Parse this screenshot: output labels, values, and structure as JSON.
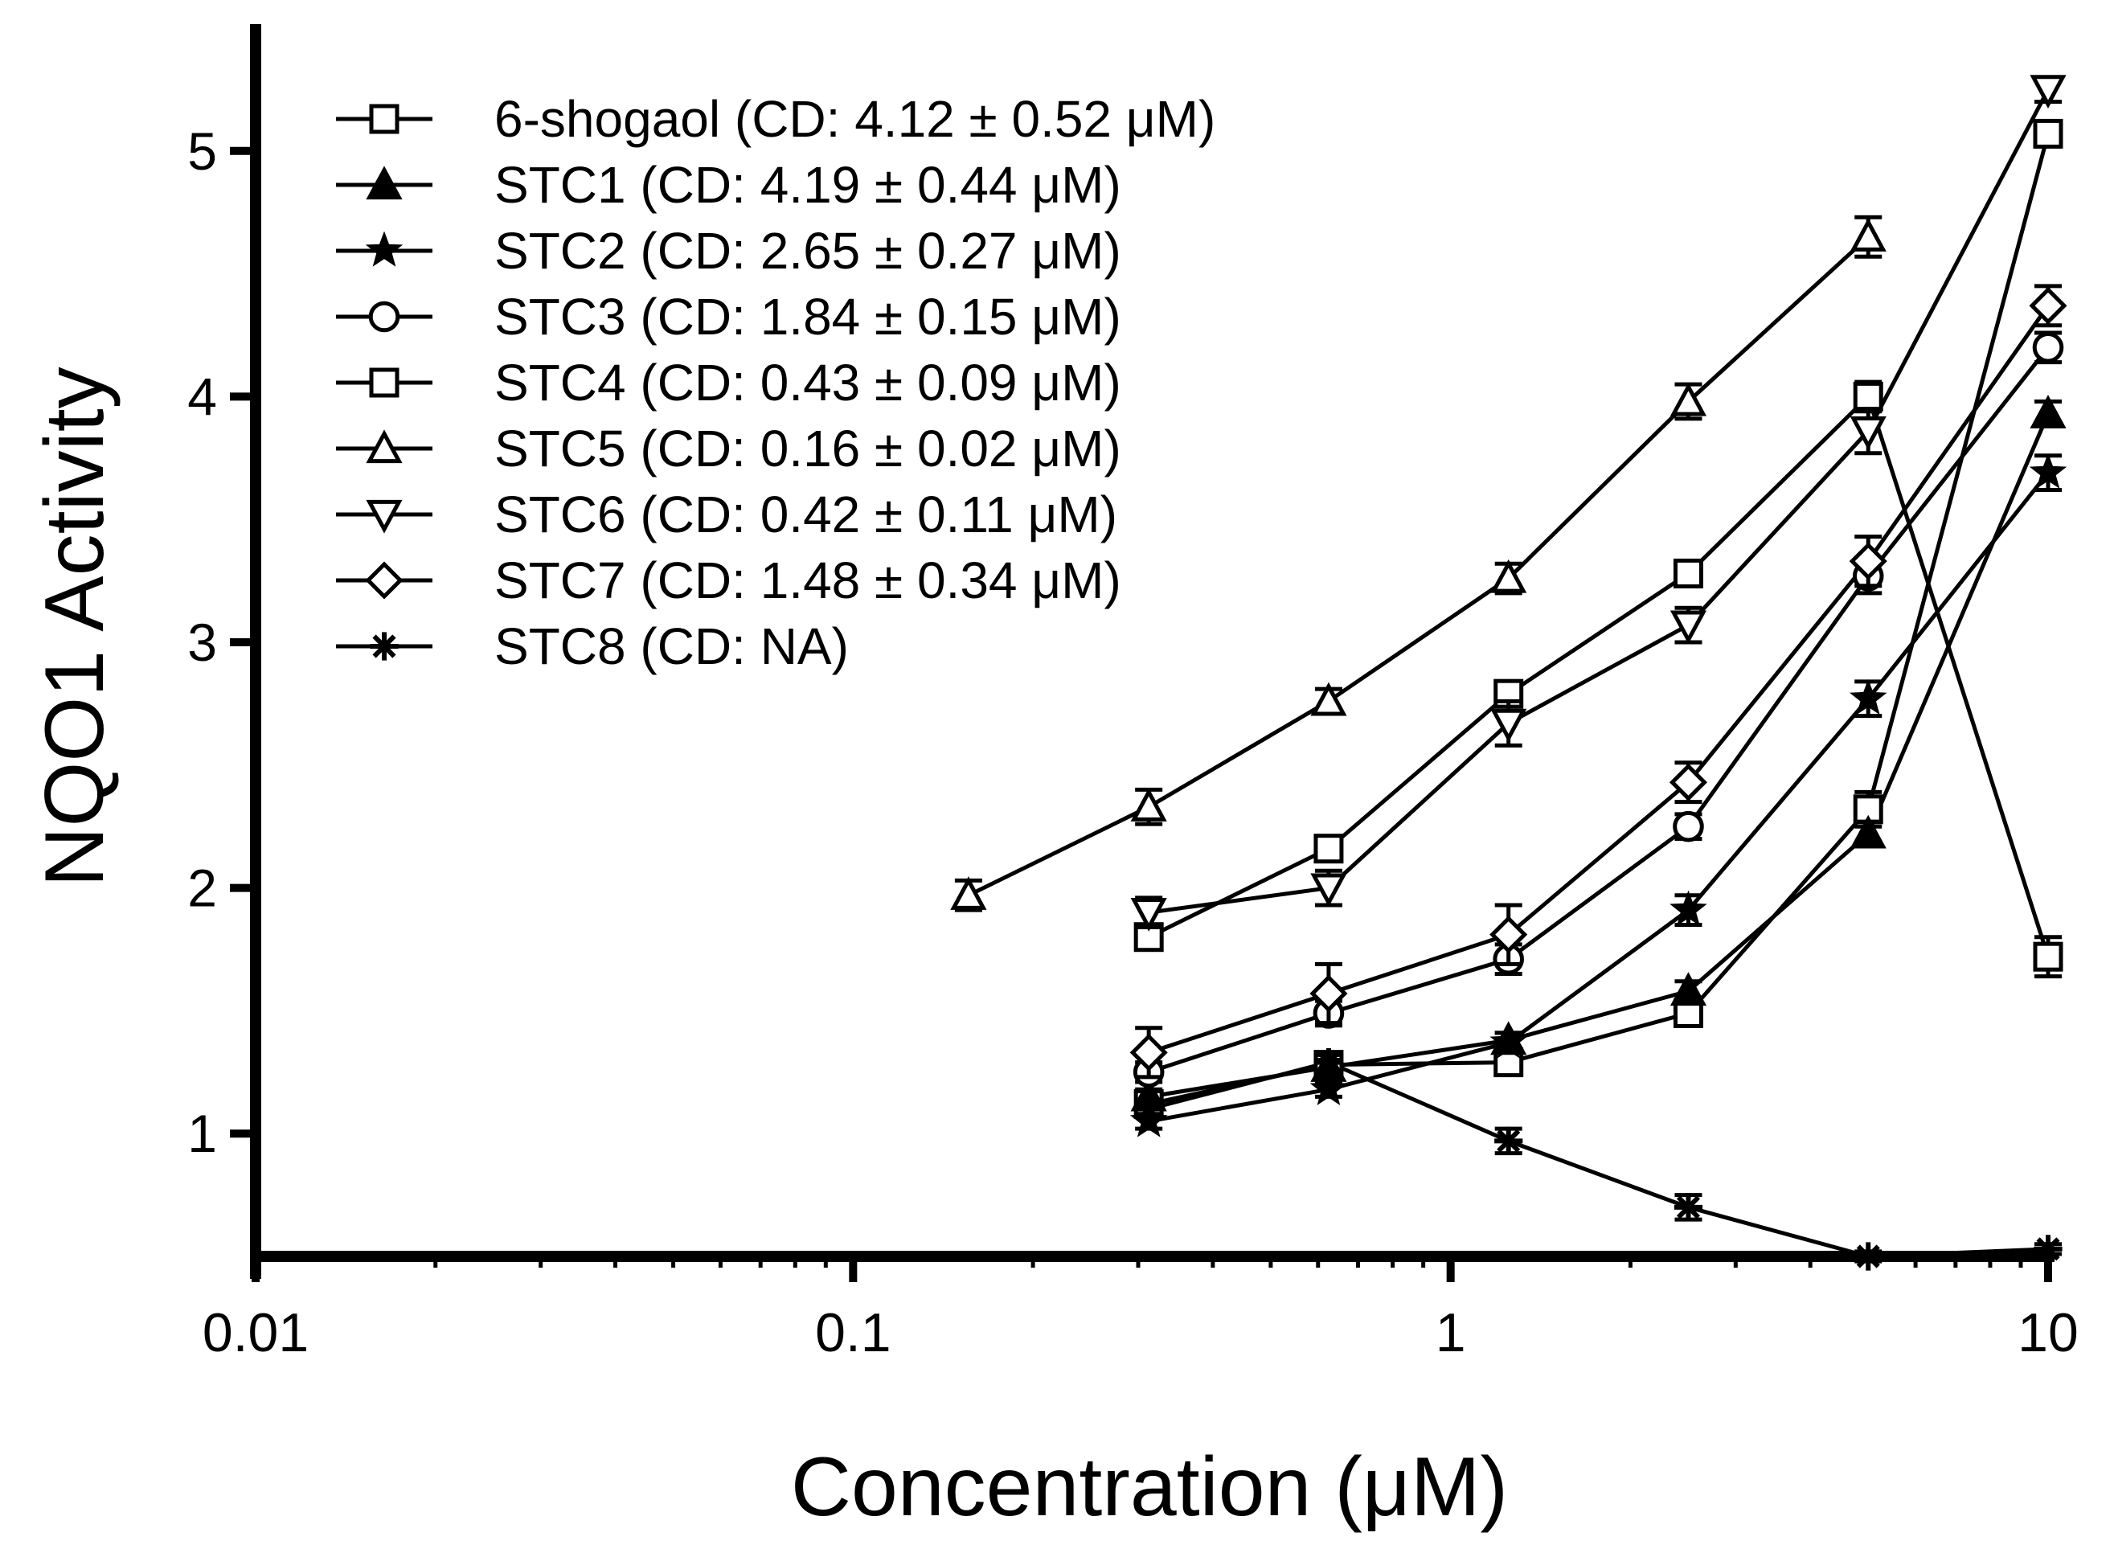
{
  "chart_data": {
    "type": "line",
    "xscale": "log",
    "xlabel": "Concentration (μM)",
    "ylabel": "NQO1 Activity",
    "xlim": [
      0.01,
      10
    ],
    "ylim": [
      0.5,
      5.5
    ],
    "xticks": [
      {
        "value": 0.01,
        "label": "0.01"
      },
      {
        "value": 0.1,
        "label": "0.1"
      },
      {
        "value": 1,
        "label": "1"
      },
      {
        "value": 10,
        "label": "10"
      }
    ],
    "yticks": [
      {
        "value": 1,
        "label": "1"
      },
      {
        "value": 2,
        "label": "2"
      },
      {
        "value": 3,
        "label": "3"
      },
      {
        "value": 4,
        "label": "4"
      },
      {
        "value": 5,
        "label": "5"
      }
    ],
    "series": [
      {
        "name": "6-shogaol",
        "legend": "6-shogaol (CD: 4.12 ± 0.52 μM)",
        "marker": "square",
        "x": [
          0.3125,
          0.625,
          1.25,
          2.5,
          5,
          10
        ],
        "y": [
          1.12,
          1.28,
          1.29,
          1.49,
          2.32,
          5.07
        ],
        "err": [
          0.03,
          0.04,
          0.04,
          0.05,
          0.07,
          0.05
        ]
      },
      {
        "name": "STC1",
        "legend": "STC1 (CD: 4.19 ± 0.44 μM)",
        "marker": "triangle-filled",
        "x": [
          0.3125,
          0.625,
          1.25,
          2.5,
          5,
          10
        ],
        "y": [
          1.15,
          1.27,
          1.38,
          1.58,
          2.22,
          3.93
        ],
        "err": [
          0.03,
          0.03,
          0.03,
          0.04,
          0.05,
          0.05
        ]
      },
      {
        "name": "STC2",
        "legend": "STC2 (CD: 2.65 ± 0.27 μM)",
        "marker": "star",
        "x": [
          0.3125,
          0.625,
          1.25,
          2.5,
          5,
          10
        ],
        "y": [
          1.05,
          1.18,
          1.37,
          1.91,
          2.77,
          3.69
        ],
        "err": [
          0.03,
          0.03,
          0.04,
          0.06,
          0.07,
          0.07
        ]
      },
      {
        "name": "STC3",
        "legend": "STC3 (CD: 1.84 ± 0.15 μM)",
        "marker": "circle",
        "x": [
          0.3125,
          0.625,
          1.25,
          2.5,
          5,
          10
        ],
        "y": [
          1.25,
          1.49,
          1.71,
          2.25,
          3.27,
          4.2
        ],
        "err": [
          0.04,
          0.05,
          0.06,
          0.05,
          0.07,
          0.06
        ]
      },
      {
        "name": "STC4",
        "legend": "STC4 (CD: 0.43 ± 0.09 μM)",
        "marker": "square",
        "x": [
          0.3125,
          0.625,
          1.25,
          2.5,
          5,
          10
        ],
        "y": [
          1.8,
          2.16,
          2.79,
          3.28,
          4.0,
          1.72
        ],
        "err": [
          0.05,
          0.05,
          0.05,
          0.05,
          0.06,
          0.08
        ]
      },
      {
        "name": "STC5",
        "legend": "STC5 (CD: 0.16 ± 0.02 μM)",
        "marker": "triangle",
        "x": [
          0.156,
          0.3125,
          0.625,
          1.25,
          2.5,
          5
        ],
        "y": [
          1.97,
          2.33,
          2.76,
          3.26,
          3.98,
          4.65
        ],
        "err": [
          0.06,
          0.07,
          0.05,
          0.06,
          0.07,
          0.08
        ]
      },
      {
        "name": "STC6",
        "legend": "STC6 (CD: 0.42 ± 0.11 μM)",
        "marker": "triangle-down",
        "x": [
          0.3125,
          0.625,
          1.25,
          2.5,
          5,
          10
        ],
        "y": [
          1.9,
          2.0,
          2.67,
          3.07,
          3.86,
          5.25
        ],
        "err": [
          0.06,
          0.07,
          0.09,
          0.07,
          0.09,
          0.05
        ]
      },
      {
        "name": "STC7",
        "legend": "STC7 (CD: 1.48 ± 0.34 μM)",
        "marker": "diamond",
        "x": [
          0.3125,
          0.625,
          1.25,
          2.5,
          5,
          10
        ],
        "y": [
          1.33,
          1.57,
          1.81,
          2.43,
          3.33,
          4.37
        ],
        "err": [
          0.1,
          0.12,
          0.12,
          0.08,
          0.1,
          0.08
        ]
      },
      {
        "name": "STC8",
        "legend": "STC8 (CD: NA)",
        "marker": "asterisk",
        "x": [
          0.3125,
          0.625,
          1.25,
          2.5,
          5,
          10
        ],
        "y": [
          1.1,
          1.29,
          0.97,
          0.7,
          0.5,
          0.53
        ],
        "err": [
          0.03,
          0.03,
          0.05,
          0.05,
          0.02,
          0.02
        ]
      }
    ]
  }
}
